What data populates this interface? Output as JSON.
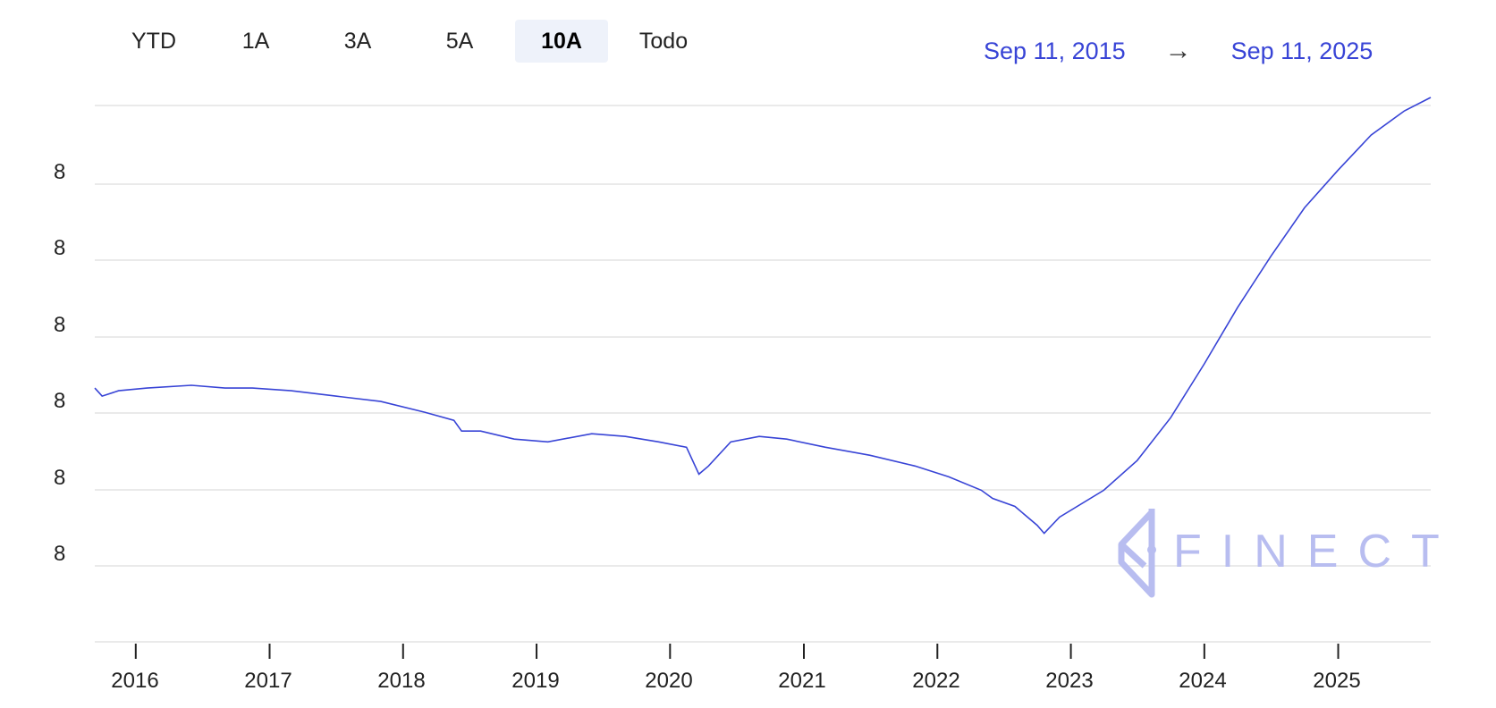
{
  "range_selector": {
    "buttons": [
      "YTD",
      "1A",
      "3A",
      "5A",
      "10A",
      "Todo"
    ],
    "active": "10A"
  },
  "date_range": {
    "start": "Sep 11, 2015",
    "arrow": "→",
    "end": "Sep 11, 2025"
  },
  "watermark": {
    "text": "FINECT"
  },
  "colors": {
    "line": "#3844d6",
    "grid": "#e3e3e3",
    "watermark": "#b8bdf0",
    "active_button_bg": "#eef2fa"
  },
  "chart_data": {
    "type": "line",
    "title": "",
    "xlabel": "",
    "ylabel": "",
    "x_tick_labels": [
      "2016",
      "2017",
      "2018",
      "2019",
      "2020",
      "2021",
      "2022",
      "2023",
      "2024",
      "2025"
    ],
    "y_tick_labels": [
      "8",
      "8",
      "8",
      "8",
      "8",
      "8"
    ],
    "xlim": [
      "2015-09-11",
      "2025-09-11"
    ],
    "ylim": [
      0,
      100
    ],
    "grid": true,
    "legend": "none",
    "series": [
      {
        "x": [
          "2015-09-11",
          "2015-10-01",
          "2015-11-15",
          "2016-02-01",
          "2016-06-01",
          "2016-09-01",
          "2016-11-15",
          "2017-03-01",
          "2017-07-01",
          "2017-11-01",
          "2018-03-01",
          "2018-05-20",
          "2018-06-10",
          "2018-08-01",
          "2018-11-01",
          "2019-02-01",
          "2019-06-01",
          "2019-09-01",
          "2019-12-01",
          "2020-02-15",
          "2020-03-20",
          "2020-04-15",
          "2020-06-15",
          "2020-09-01",
          "2020-11-15",
          "2021-03-01",
          "2021-07-01",
          "2021-11-01",
          "2022-02-01",
          "2022-05-01",
          "2022-06-01",
          "2022-08-01",
          "2022-10-01",
          "2022-10-20",
          "2022-12-01",
          "2023-04-01",
          "2023-07-01",
          "2023-10-01",
          "2024-01-01",
          "2024-04-01",
          "2024-07-01",
          "2024-10-01",
          "2025-01-01",
          "2025-04-01",
          "2025-07-01",
          "2025-09-11"
        ],
        "values": [
          47.5,
          46.0,
          47.0,
          47.5,
          48.0,
          47.5,
          47.5,
          47.0,
          46.0,
          45.0,
          43.0,
          41.5,
          39.5,
          39.5,
          38.0,
          37.5,
          39.0,
          38.5,
          37.5,
          36.5,
          31.5,
          33.0,
          37.5,
          38.5,
          38.0,
          36.5,
          35.0,
          33.0,
          31.0,
          28.5,
          27.0,
          25.5,
          22.0,
          20.5,
          23.5,
          28.5,
          34.0,
          42.0,
          52.0,
          62.5,
          72.0,
          81.0,
          88.0,
          94.5,
          99.0,
          101.5
        ]
      }
    ]
  }
}
